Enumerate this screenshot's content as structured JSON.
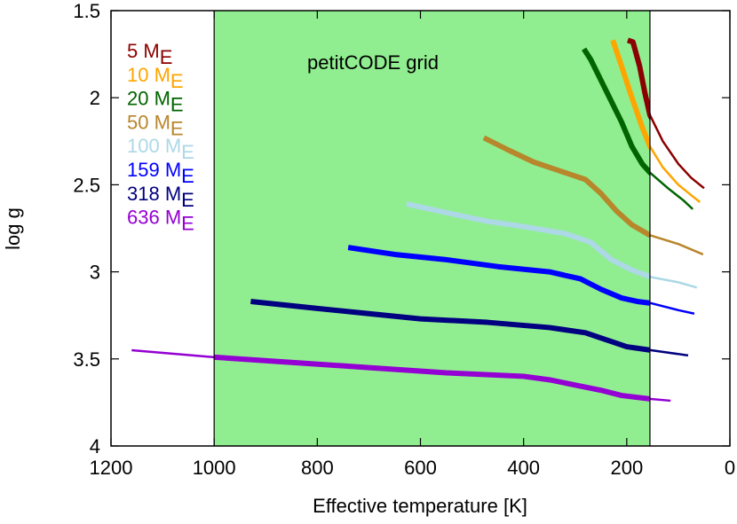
{
  "chart_data": {
    "type": "line",
    "xlabel": "Effective temperature [K]",
    "ylabel": "log g",
    "annotation": "petitCODE grid",
    "xlim": [
      1200,
      0
    ],
    "xticks": [
      1200,
      1000,
      800,
      600,
      400,
      200,
      0
    ],
    "ylim": [
      1.5,
      4
    ],
    "yticks": [
      1.5,
      2,
      2.5,
      3,
      3.5,
      4
    ],
    "shaded_region": {
      "xrange": [
        1000,
        155
      ],
      "color": "#90ee90"
    },
    "series": [
      {
        "name": "5 ME",
        "color": "#8b0000",
        "x": [
          198,
          188,
          175,
          165,
          155,
          130,
          100,
          75,
          50
        ],
        "values": [
          1.67,
          1.68,
          1.82,
          1.97,
          2.1,
          2.25,
          2.38,
          2.46,
          2.52
        ]
      },
      {
        "name": "10 ME",
        "color": "#ffa500",
        "x": [
          227,
          210,
          190,
          170,
          155,
          130,
          100,
          75,
          58
        ],
        "values": [
          1.67,
          1.82,
          2.0,
          2.17,
          2.28,
          2.4,
          2.5,
          2.56,
          2.6
        ]
      },
      {
        "name": "20 ME",
        "color": "#006400",
        "x": [
          283,
          270,
          250,
          230,
          210,
          190,
          170,
          155,
          120,
          90,
          72
        ],
        "values": [
          1.72,
          1.78,
          1.9,
          2.02,
          2.14,
          2.28,
          2.38,
          2.43,
          2.52,
          2.59,
          2.64
        ]
      },
      {
        "name": "50 ME",
        "color": "#b8862b",
        "x": [
          477,
          430,
          380,
          330,
          280,
          250,
          220,
          190,
          155,
          100,
          52
        ],
        "values": [
          2.23,
          2.3,
          2.37,
          2.42,
          2.47,
          2.55,
          2.65,
          2.73,
          2.79,
          2.84,
          2.9
        ]
      },
      {
        "name": "100 ME",
        "color": "#add8e6",
        "x": [
          627,
          550,
          470,
          400,
          320,
          270,
          230,
          190,
          153,
          100,
          64
        ],
        "values": [
          2.61,
          2.66,
          2.71,
          2.74,
          2.78,
          2.83,
          2.93,
          2.99,
          3.03,
          3.06,
          3.09
        ]
      },
      {
        "name": "159 ME",
        "color": "#0000ff",
        "x": [
          740,
          650,
          550,
          450,
          350,
          290,
          250,
          210,
          180,
          153,
          100,
          69
        ],
        "values": [
          2.86,
          2.9,
          2.93,
          2.97,
          3.0,
          3.04,
          3.1,
          3.15,
          3.17,
          3.18,
          3.22,
          3.24
        ]
      },
      {
        "name": "318 ME",
        "color": "#000080",
        "x": [
          929,
          800,
          700,
          600,
          470,
          350,
          280,
          240,
          200,
          153,
          81
        ],
        "values": [
          3.17,
          3.21,
          3.24,
          3.27,
          3.29,
          3.32,
          3.35,
          3.39,
          3.43,
          3.45,
          3.48
        ]
      },
      {
        "name": "636 ME",
        "color": "#9400d3",
        "x": [
          1160,
          1000,
          850,
          700,
          550,
          400,
          350,
          300,
          250,
          210,
          153,
          115
        ],
        "values": [
          3.45,
          3.49,
          3.52,
          3.55,
          3.58,
          3.6,
          3.62,
          3.65,
          3.68,
          3.71,
          3.73,
          3.74
        ]
      }
    ]
  }
}
